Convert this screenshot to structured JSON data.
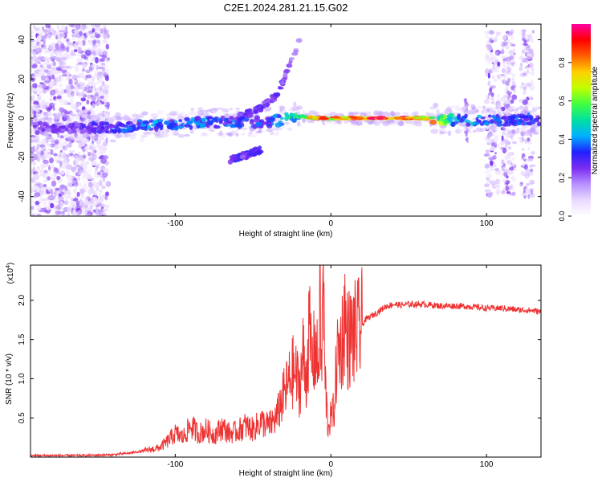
{
  "page": {
    "title": "C2E1.2024.281.21.15.G02"
  },
  "chart_data": [
    {
      "type": "heatmap",
      "xlabel": "Height of straight line (km)",
      "ylabel": "Frequency (Hz)",
      "xlim": [
        -193,
        135
      ],
      "ylim": [
        -50,
        48
      ],
      "xticks": [
        -100,
        0,
        100
      ],
      "yticks": [
        -40,
        -20,
        0,
        20,
        40
      ],
      "grid": false,
      "colorbar": {
        "label": "Normalized spectral amplitude",
        "range": [
          0,
          1
        ],
        "ticks": [
          0.0,
          0.2,
          0.4,
          0.6,
          0.8
        ],
        "tick_labels": [
          "0.0",
          "0.2",
          "0.4",
          "0.6",
          "0.8"
        ],
        "colormap": [
          "#ffffff",
          "#e9d9ff",
          "#b890ff",
          "#7a2cf0",
          "#2020ff",
          "#00b0ff",
          "#00e0a0",
          "#40ff40",
          "#c0ff00",
          "#ffd000",
          "#ff6000",
          "#ff0000",
          "#ff00a0"
        ]
      },
      "features": [
        {
          "name": "main-trace",
          "x": [
            -193,
            -150,
            -120,
            -100,
            -80,
            -60,
            -40,
            -20,
            -10,
            0,
            20,
            40,
            60,
            80,
            100,
            120,
            135
          ],
          "y": [
            -5,
            -5,
            -4,
            -3,
            -2,
            -2,
            -2,
            1,
            0,
            0,
            0,
            0,
            0,
            -1,
            -1,
            -1,
            -1
          ],
          "amplitude": [
            0.25,
            0.3,
            0.4,
            0.4,
            0.4,
            0.35,
            0.35,
            0.6,
            0.9,
            0.9,
            0.95,
            0.95,
            0.9,
            0.45,
            0.4,
            0.35,
            0.35
          ]
        },
        {
          "name": "upper-branch",
          "x": [
            -60,
            -45,
            -35,
            -30,
            -25,
            -20
          ],
          "y": [
            0,
            5,
            12,
            20,
            30,
            40
          ],
          "amplitude": [
            0.3,
            0.3,
            0.3,
            0.25,
            0.2,
            0.2
          ]
        },
        {
          "name": "lower-branch",
          "x": [
            -65,
            -55,
            -45
          ],
          "y": [
            -21,
            -19,
            -16
          ],
          "amplitude": [
            0.35,
            0.3,
            0.3
          ]
        }
      ]
    },
    {
      "type": "line",
      "xlabel": "Height of straight line (km)",
      "ylabel": "SNR (10 * v/v)",
      "yscale_label": "(x10",
      "yscale_exp": "4",
      "y_multiplier": 10000,
      "xlim": [
        -193,
        135
      ],
      "ylim": [
        0,
        2.45
      ],
      "xticks": [
        -100,
        0,
        100
      ],
      "yticks": [
        0.5,
        1.0,
        1.5,
        2.0
      ],
      "ytick_labels": [
        "0.5",
        "1.0",
        "1.5",
        "2.0"
      ],
      "grid": false,
      "series": [
        {
          "color": "#ee3333",
          "x": [
            -193,
            -160,
            -140,
            -130,
            -120,
            -110,
            -105,
            -100,
            -95,
            -90,
            -85,
            -80,
            -75,
            -70,
            -65,
            -60,
            -55,
            -50,
            -45,
            -40,
            -35,
            -32,
            -28,
            -24,
            -20,
            -18,
            -16,
            -14,
            -12,
            -10,
            -8,
            -7,
            -6,
            -5,
            -4,
            -2,
            0,
            2,
            4,
            6,
            8,
            9,
            10,
            14,
            18,
            22,
            26,
            30,
            35,
            40,
            45,
            50,
            60,
            70,
            80,
            90,
            100,
            110,
            120,
            130,
            135
          ],
          "y": [
            0.02,
            0.02,
            0.03,
            0.05,
            0.08,
            0.12,
            0.2,
            0.3,
            0.25,
            0.4,
            0.3,
            0.35,
            0.28,
            0.38,
            0.3,
            0.33,
            0.4,
            0.35,
            0.45,
            0.4,
            0.5,
            0.7,
            0.9,
            1.1,
            0.9,
            1.3,
            1.0,
            1.6,
            1.2,
            1.4,
            1.1,
            2.1,
            1.0,
            2.45,
            1.1,
            0.4,
            0.5,
            0.6,
            1.3,
            1.4,
            1.6,
            1.9,
            1.5,
            1.55,
            1.6,
            1.75,
            1.8,
            1.85,
            1.92,
            1.95,
            1.94,
            1.95,
            1.95,
            1.93,
            1.93,
            1.92,
            1.9,
            1.9,
            1.88,
            1.87,
            1.85
          ]
        }
      ]
    }
  ]
}
